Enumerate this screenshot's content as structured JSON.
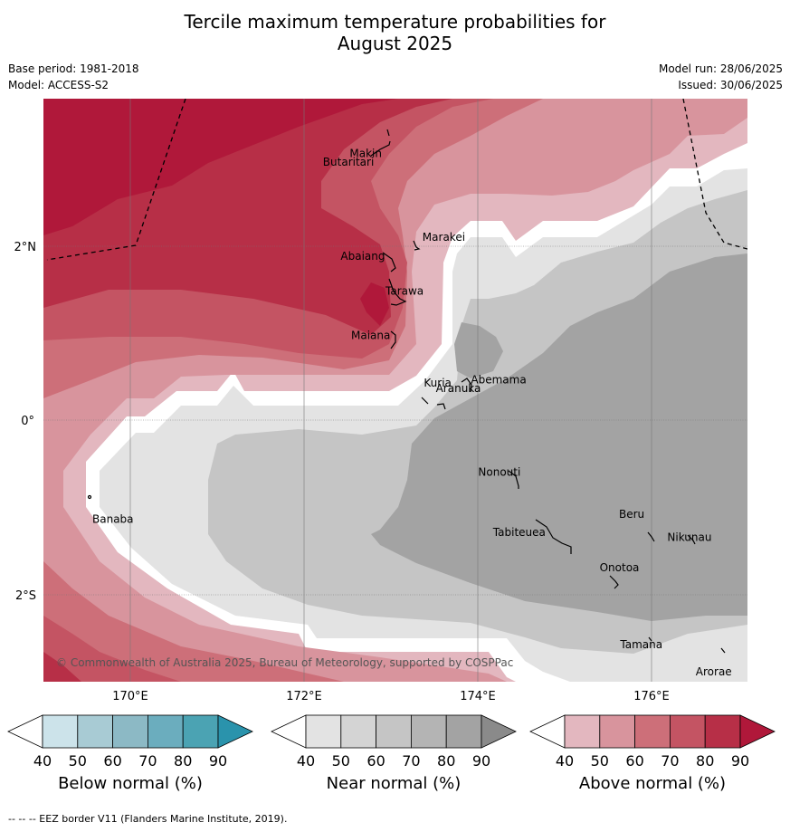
{
  "title_line1": "Tercile maximum temperature probabilities for",
  "title_line2": "August 2025",
  "meta_left": [
    "Base period: 1981-2018",
    "Model: ACCESS-S2"
  ],
  "meta_right": [
    "Model run: 28/06/2025",
    "Issued: 30/06/2025"
  ],
  "lon_ticks": [
    "170°E",
    "172°E",
    "174°E",
    "176°E"
  ],
  "lat_ticks": [
    "2°N",
    "0°",
    "2°S"
  ],
  "places": [
    {
      "name": "Makin",
      "lon": 172.9,
      "lat": 3.1
    },
    {
      "name": "Butaritari",
      "lon": 172.8,
      "lat": 3.0
    },
    {
      "name": "Marakei",
      "lon": 173.3,
      "lat": 2.0
    },
    {
      "name": "Abaiang",
      "lon": 172.9,
      "lat": 1.8
    },
    {
      "name": "Tarawa",
      "lon": 173.0,
      "lat": 1.4
    },
    {
      "name": "Maiana",
      "lon": 173.0,
      "lat": 0.9
    },
    {
      "name": "Abemama",
      "lon": 173.9,
      "lat": 0.4
    },
    {
      "name": "Kuria",
      "lon": 173.4,
      "lat": 0.2
    },
    {
      "name": "Aranuka",
      "lon": 173.6,
      "lat": 0.2
    },
    {
      "name": "Nonouti",
      "lon": 174.4,
      "lat": -0.6
    },
    {
      "name": "Banaba",
      "lon": 169.5,
      "lat": -0.9
    },
    {
      "name": "Beru",
      "lon": 176.0,
      "lat": -1.3
    },
    {
      "name": "Nikunau",
      "lon": 176.4,
      "lat": -1.4
    },
    {
      "name": "Tabiteuea",
      "lon": 174.8,
      "lat": -1.3
    },
    {
      "name": "Onotoa",
      "lon": 175.6,
      "lat": -1.8
    },
    {
      "name": "Tamana",
      "lon": 175.9,
      "lat": -2.5
    },
    {
      "name": "Arorae",
      "lon": 176.8,
      "lat": -2.7
    }
  ],
  "copyright": "© Commonwealth of Australia 2025, Bureau of Meteorology, supported by COSPPac",
  "colorbars": [
    {
      "label": "Below normal (%)",
      "ticks": [
        "40",
        "50",
        "60",
        "70",
        "80",
        "90"
      ],
      "colors": [
        "#ffffff",
        "#cce3ea",
        "#a8cbd4",
        "#8cb9c5",
        "#6badbe",
        "#4ba3b3",
        "#2a93ac"
      ]
    },
    {
      "label": "Near normal (%)",
      "ticks": [
        "40",
        "50",
        "60",
        "70",
        "80",
        "90"
      ],
      "colors": [
        "#ffffff",
        "#e3e3e3",
        "#d4d4d4",
        "#c5c5c5",
        "#b4b4b4",
        "#a3a3a3",
        "#8a8a8a"
      ]
    },
    {
      "label": "Above normal (%)",
      "ticks": [
        "40",
        "50",
        "60",
        "70",
        "80",
        "90"
      ],
      "colors": [
        "#ffffff",
        "#e3b7bf",
        "#d8949d",
        "#cd6f79",
        "#c45463",
        "#b72f47",
        "#b0183a"
      ]
    }
  ],
  "footer": "--  --  -- EEZ border V11 (Flanders Marine Institute, 2019)."
}
